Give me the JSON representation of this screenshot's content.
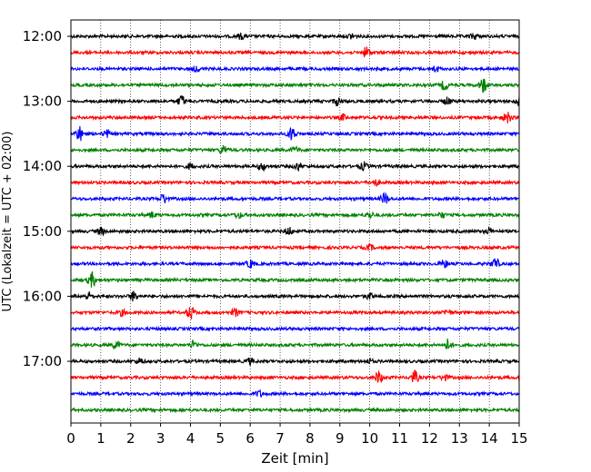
{
  "chart_data": {
    "type": "line",
    "title": "",
    "xlabel": "Zeit  [min]",
    "ylabel": "UTC (Lokalzeit = UTC + 02:00)",
    "xlim": [
      0,
      15
    ],
    "x_ticks": [
      "0",
      "1",
      "2",
      "3",
      "4",
      "5",
      "6",
      "7",
      "8",
      "9",
      "10",
      "11",
      "12",
      "13",
      "14",
      "15"
    ],
    "y_tick_labels": [
      "12:00",
      "13:00",
      "14:00",
      "15:00",
      "16:00",
      "17:00"
    ],
    "grid": "vertical dotted at each minute",
    "trace_colors": [
      "#000000",
      "#ff0000",
      "#0000ff",
      "#008000"
    ],
    "series": [
      {
        "start": "12:00",
        "color": "#000000",
        "events": [
          {
            "t": 5.7,
            "amp": 3
          },
          {
            "t": 9.4,
            "amp": 3
          },
          {
            "t": 13.5,
            "amp": 3
          }
        ]
      },
      {
        "start": "12:15",
        "color": "#ff0000",
        "events": [
          {
            "t": 9.9,
            "amp": 6
          }
        ]
      },
      {
        "start": "12:30",
        "color": "#0000ff",
        "events": [
          {
            "t": 4.2,
            "amp": 3
          },
          {
            "t": 12.2,
            "amp": 3
          }
        ]
      },
      {
        "start": "12:45",
        "color": "#008000",
        "events": [
          {
            "t": 12.5,
            "amp": 5
          },
          {
            "t": 13.8,
            "amp": 8
          }
        ]
      },
      {
        "start": "13:00",
        "color": "#000000",
        "events": [
          {
            "t": 3.7,
            "amp": 6
          },
          {
            "t": 8.9,
            "amp": 4
          },
          {
            "t": 12.6,
            "amp": 4
          },
          {
            "t": 15.0,
            "amp": 4
          }
        ]
      },
      {
        "start": "13:15",
        "color": "#ff0000",
        "events": [
          {
            "t": 9.1,
            "amp": 3
          },
          {
            "t": 14.6,
            "amp": 6
          }
        ]
      },
      {
        "start": "13:30",
        "color": "#0000ff",
        "events": [
          {
            "t": 0.3,
            "amp": 8
          },
          {
            "t": 1.2,
            "amp": 4
          },
          {
            "t": 7.4,
            "amp": 8
          }
        ]
      },
      {
        "start": "13:45",
        "color": "#008000",
        "events": [
          {
            "t": 5.1,
            "amp": 5
          },
          {
            "t": 7.5,
            "amp": 3
          }
        ]
      },
      {
        "start": "14:00",
        "color": "#000000",
        "events": [
          {
            "t": 4.0,
            "amp": 3
          },
          {
            "t": 6.4,
            "amp": 4
          },
          {
            "t": 7.6,
            "amp": 4
          },
          {
            "t": 9.8,
            "amp": 4
          }
        ]
      },
      {
        "start": "14:15",
        "color": "#ff0000",
        "events": [
          {
            "t": 10.2,
            "amp": 3
          }
        ]
      },
      {
        "start": "14:30",
        "color": "#0000ff",
        "events": [
          {
            "t": 3.1,
            "amp": 5
          },
          {
            "t": 10.5,
            "amp": 6
          }
        ]
      },
      {
        "start": "14:45",
        "color": "#008000",
        "events": [
          {
            "t": 2.7,
            "amp": 3
          },
          {
            "t": 5.6,
            "amp": 3
          },
          {
            "t": 10.0,
            "amp": 3
          },
          {
            "t": 12.4,
            "amp": 3
          }
        ]
      },
      {
        "start": "15:00",
        "color": "#000000",
        "events": [
          {
            "t": 1.0,
            "amp": 4
          },
          {
            "t": 7.3,
            "amp": 4
          },
          {
            "t": 14.0,
            "amp": 3
          }
        ]
      },
      {
        "start": "15:15",
        "color": "#ff0000",
        "events": [
          {
            "t": 10.0,
            "amp": 3
          }
        ]
      },
      {
        "start": "15:30",
        "color": "#0000ff",
        "events": [
          {
            "t": 6.0,
            "amp": 4
          },
          {
            "t": 12.5,
            "amp": 4
          },
          {
            "t": 14.2,
            "amp": 6
          }
        ]
      },
      {
        "start": "15:45",
        "color": "#008000",
        "events": [
          {
            "t": 0.7,
            "amp": 8
          }
        ]
      },
      {
        "start": "16:00",
        "color": "#000000",
        "events": [
          {
            "t": 0.6,
            "amp": 4
          },
          {
            "t": 2.1,
            "amp": 5
          },
          {
            "t": 10.0,
            "amp": 3
          }
        ]
      },
      {
        "start": "16:15",
        "color": "#ff0000",
        "events": [
          {
            "t": 1.7,
            "amp": 3
          },
          {
            "t": 4.0,
            "amp": 7
          },
          {
            "t": 5.5,
            "amp": 4
          },
          {
            "t": 12.6,
            "amp": 3
          }
        ]
      },
      {
        "start": "16:30",
        "color": "#0000ff",
        "events": []
      },
      {
        "start": "16:45",
        "color": "#008000",
        "events": [
          {
            "t": 1.5,
            "amp": 4
          },
          {
            "t": 4.1,
            "amp": 4
          },
          {
            "t": 12.6,
            "amp": 6
          }
        ]
      },
      {
        "start": "17:00",
        "color": "#000000",
        "events": [
          {
            "t": 2.3,
            "amp": 3
          },
          {
            "t": 6.0,
            "amp": 3
          },
          {
            "t": 10.0,
            "amp": 2
          }
        ]
      },
      {
        "start": "17:15",
        "color": "#ff0000",
        "events": [
          {
            "t": 10.3,
            "amp": 7
          },
          {
            "t": 11.5,
            "amp": 7
          },
          {
            "t": 12.5,
            "amp": 3
          }
        ]
      },
      {
        "start": "17:30",
        "color": "#0000ff",
        "events": [
          {
            "t": 6.3,
            "amp": 3
          }
        ]
      },
      {
        "start": "17:45",
        "color": "#008000",
        "events": []
      }
    ]
  }
}
